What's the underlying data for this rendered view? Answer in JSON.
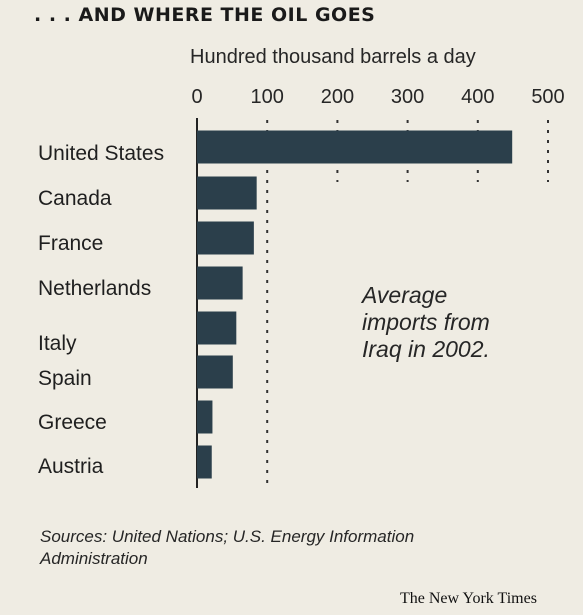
{
  "chart": {
    "title": ". . . AND WHERE THE OIL GOES",
    "units_label": "Hundred thousand barrels a day",
    "annotation": [
      "Average",
      "imports from",
      "Iraq in 2002."
    ],
    "sources": "Sources: United Nations; U.S. Energy Information Administration",
    "credit": "The New York Times"
  },
  "chart_data": {
    "type": "bar",
    "orientation": "horizontal",
    "title": ". . . AND WHERE THE OIL GOES",
    "xlabel": "Hundred thousand barrels a day",
    "xlim": [
      0,
      500
    ],
    "ticks": [
      0,
      100,
      200,
      300,
      400,
      500
    ],
    "gridlines": "dotted vertical at 100-500",
    "categories": [
      "United States",
      "Canada",
      "France",
      "Netherlands",
      "Italy",
      "Spain",
      "Greece",
      "Austria"
    ],
    "values": [
      449,
      85,
      81,
      65,
      56,
      51,
      22,
      21
    ],
    "bar_color": "#2b3f4b"
  }
}
